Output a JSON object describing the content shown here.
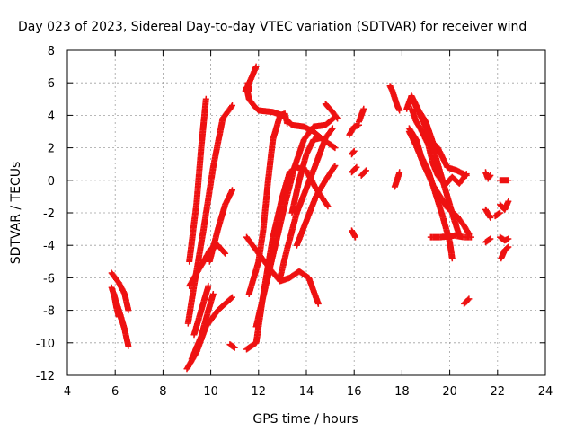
{
  "chart_data": {
    "type": "scatter",
    "title": "Day 023 of 2023, Sidereal Day-to-day VTEC variation (SDTVAR) for receiver wind",
    "xlabel": "GPS time / hours",
    "ylabel": "SDTVAR / TECUs",
    "xlim": [
      4,
      24
    ],
    "ylim": [
      -12,
      8
    ],
    "xticks": [
      4,
      6,
      8,
      10,
      12,
      14,
      16,
      18,
      20,
      22,
      24
    ],
    "yticks": [
      -12,
      -10,
      -8,
      -6,
      -4,
      -2,
      0,
      2,
      4,
      6,
      8
    ],
    "grid": true,
    "marker": "+",
    "color": "#ee1111",
    "tracks": [
      [
        [
          5.85,
          -5.7
        ],
        [
          6.15,
          -6.3
        ],
        [
          6.4,
          -7.0
        ],
        [
          6.55,
          -8.0
        ]
      ],
      [
        [
          5.85,
          -6.6
        ],
        [
          6.0,
          -7.3
        ],
        [
          6.2,
          -8.2
        ],
        [
          6.4,
          -9.2
        ],
        [
          6.55,
          -10.2
        ]
      ],
      [
        [
          5.95,
          -7.0
        ],
        [
          6.05,
          -7.8
        ],
        [
          6.15,
          -8.4
        ]
      ],
      [
        [
          9.1,
          -5.0
        ],
        [
          9.4,
          -1.5
        ],
        [
          9.6,
          2.0
        ],
        [
          9.8,
          5.0
        ]
      ],
      [
        [
          9.05,
          -8.8
        ],
        [
          9.3,
          -6.5
        ],
        [
          9.7,
          -3.0
        ],
        [
          10.1,
          0.8
        ],
        [
          10.5,
          3.8
        ],
        [
          10.9,
          4.6
        ]
      ],
      [
        [
          9.0,
          -11.6
        ],
        [
          9.4,
          -10.6
        ],
        [
          9.8,
          -9.0
        ],
        [
          10.3,
          -8.0
        ],
        [
          10.9,
          -7.2
        ]
      ],
      [
        [
          9.2,
          -11.0
        ],
        [
          9.6,
          -9.6
        ],
        [
          9.9,
          -8.0
        ],
        [
          10.1,
          -7.0
        ]
      ],
      [
        [
          9.1,
          -6.5
        ],
        [
          9.7,
          -5.0
        ],
        [
          10.0,
          -4.2
        ],
        [
          10.3,
          -4.0
        ],
        [
          10.6,
          -4.5
        ]
      ],
      [
        [
          9.3,
          -9.5
        ],
        [
          9.6,
          -8.0
        ],
        [
          9.9,
          -6.5
        ]
      ],
      [
        [
          9.95,
          -5.0
        ],
        [
          10.3,
          -3.0
        ],
        [
          10.6,
          -1.5
        ],
        [
          10.9,
          -0.6
        ]
      ],
      [
        [
          10.8,
          -10.1
        ],
        [
          11.0,
          -10.3
        ]
      ],
      [
        [
          11.5,
          5.7
        ],
        [
          11.6,
          5.0
        ],
        [
          11.8,
          4.6
        ],
        [
          12.0,
          4.3
        ],
        [
          12.6,
          4.2
        ],
        [
          13.0,
          4.0
        ],
        [
          13.4,
          3.4
        ],
        [
          13.9,
          3.3
        ],
        [
          14.3,
          3.0
        ],
        [
          14.7,
          2.5
        ],
        [
          15.2,
          2.0
        ]
      ],
      [
        [
          11.45,
          5.5
        ],
        [
          11.7,
          6.3
        ],
        [
          11.9,
          7.0
        ]
      ],
      [
        [
          11.55,
          6.0
        ],
        [
          11.6,
          5.5
        ]
      ],
      [
        [
          11.5,
          -10.4
        ],
        [
          11.9,
          -10.0
        ],
        [
          12.2,
          -7.0
        ],
        [
          12.6,
          -3.5
        ],
        [
          13.0,
          -1.0
        ],
        [
          13.3,
          0.5
        ],
        [
          13.6,
          0.8
        ],
        [
          14.0,
          0.6
        ],
        [
          14.4,
          -0.5
        ],
        [
          14.9,
          -1.6
        ]
      ],
      [
        [
          11.5,
          -3.5
        ],
        [
          12.0,
          -4.5
        ],
        [
          12.5,
          -5.5
        ],
        [
          12.9,
          -6.2
        ],
        [
          13.3,
          -6.0
        ],
        [
          13.7,
          -5.6
        ],
        [
          14.1,
          -6.0
        ],
        [
          14.5,
          -7.6
        ]
      ],
      [
        [
          11.6,
          -7.0
        ],
        [
          12.0,
          -5.0
        ],
        [
          12.2,
          -3.0
        ],
        [
          12.4,
          0.0
        ],
        [
          12.6,
          2.5
        ],
        [
          12.9,
          4.0
        ],
        [
          13.1,
          4.1
        ],
        [
          13.2,
          3.5
        ]
      ],
      [
        [
          11.9,
          -9.0
        ],
        [
          12.3,
          -6.5
        ],
        [
          12.7,
          -4.0
        ],
        [
          13.1,
          -1.5
        ],
        [
          13.5,
          0.8
        ],
        [
          13.9,
          2.5
        ],
        [
          14.3,
          3.3
        ],
        [
          14.8,
          3.4
        ],
        [
          15.2,
          3.9
        ]
      ],
      [
        [
          12.9,
          -6.0
        ],
        [
          13.2,
          -4.2
        ],
        [
          13.6,
          -2.0
        ],
        [
          14.0,
          -0.5
        ],
        [
          14.4,
          1.0
        ],
        [
          14.8,
          2.6
        ],
        [
          15.1,
          3.2
        ]
      ],
      [
        [
          13.4,
          -2.0
        ],
        [
          13.7,
          0.0
        ],
        [
          14.0,
          1.6
        ],
        [
          14.3,
          2.5
        ],
        [
          14.6,
          2.6
        ]
      ],
      [
        [
          13.6,
          -4.0
        ],
        [
          14.0,
          -2.5
        ],
        [
          14.4,
          -1.0
        ],
        [
          14.8,
          0.0
        ],
        [
          15.2,
          0.9
        ]
      ],
      [
        [
          14.8,
          4.7
        ],
        [
          15.1,
          4.2
        ],
        [
          15.3,
          3.8
        ]
      ],
      [
        [
          15.8,
          2.8
        ],
        [
          16.0,
          3.3
        ],
        [
          16.2,
          3.4
        ]
      ],
      [
        [
          16.2,
          3.6
        ],
        [
          16.4,
          4.4
        ]
      ],
      [
        [
          15.9,
          0.5
        ],
        [
          16.1,
          0.8
        ]
      ],
      [
        [
          15.9,
          1.6
        ],
        [
          16.0,
          1.8
        ]
      ],
      [
        [
          15.9,
          -3.1
        ],
        [
          16.05,
          -3.5
        ]
      ],
      [
        [
          16.3,
          0.3
        ],
        [
          16.5,
          0.6
        ]
      ],
      [
        [
          17.5,
          5.8
        ],
        [
          17.6,
          5.5
        ],
        [
          17.8,
          4.6
        ],
        [
          17.9,
          4.3
        ]
      ],
      [
        [
          17.7,
          -0.4
        ],
        [
          17.9,
          0.5
        ]
      ],
      [
        [
          18.2,
          4.4
        ],
        [
          18.4,
          5.2
        ],
        [
          18.7,
          4.3
        ],
        [
          19.0,
          3.6
        ],
        [
          19.3,
          2.3
        ],
        [
          19.5,
          2.0
        ],
        [
          19.9,
          0.8
        ],
        [
          20.3,
          0.6
        ],
        [
          20.7,
          0.3
        ]
      ],
      [
        [
          18.3,
          3.2
        ],
        [
          18.6,
          2.5
        ],
        [
          18.8,
          1.5
        ],
        [
          19.1,
          0.6
        ],
        [
          19.4,
          -0.8
        ],
        [
          19.7,
          -2.2
        ],
        [
          20.0,
          -3.8
        ],
        [
          20.1,
          -4.8
        ]
      ],
      [
        [
          18.4,
          4.4
        ],
        [
          18.6,
          3.6
        ],
        [
          18.8,
          3.1
        ],
        [
          19.1,
          2.2
        ],
        [
          19.3,
          1.0
        ],
        [
          19.5,
          0.3
        ],
        [
          19.8,
          -0.3
        ],
        [
          20.1,
          0.2
        ],
        [
          20.4,
          -0.2
        ],
        [
          20.7,
          0.4
        ]
      ],
      [
        [
          18.3,
          3.0
        ],
        [
          18.6,
          2.1
        ],
        [
          18.9,
          1.0
        ],
        [
          19.3,
          -0.3
        ],
        [
          19.6,
          -1.0
        ],
        [
          19.9,
          -1.7
        ],
        [
          20.3,
          -2.2
        ],
        [
          20.6,
          -2.8
        ],
        [
          20.8,
          -3.3
        ]
      ],
      [
        [
          18.5,
          4.8
        ],
        [
          18.9,
          3.6
        ],
        [
          19.2,
          2.5
        ],
        [
          19.5,
          1.0
        ],
        [
          19.8,
          -0.5
        ],
        [
          20.0,
          -1.5
        ],
        [
          20.2,
          -2.5
        ],
        [
          20.4,
          -3.4
        ]
      ],
      [
        [
          19.2,
          -3.5
        ],
        [
          19.6,
          -3.5
        ],
        [
          20.2,
          -3.4
        ],
        [
          20.6,
          -3.5
        ],
        [
          20.9,
          -3.5
        ]
      ],
      [
        [
          20.6,
          -7.6
        ],
        [
          20.8,
          -7.3
        ]
      ],
      [
        [
          21.5,
          0.5
        ],
        [
          21.6,
          0.1
        ],
        [
          21.7,
          0.3
        ]
      ],
      [
        [
          21.5,
          -1.8
        ],
        [
          21.7,
          -2.3
        ]
      ],
      [
        [
          21.5,
          -3.8
        ],
        [
          21.7,
          -3.6
        ]
      ],
      [
        [
          22.1,
          -1.5
        ],
        [
          22.3,
          -1.8
        ],
        [
          22.45,
          -1.3
        ]
      ],
      [
        [
          22.1,
          -3.5
        ],
        [
          22.3,
          -3.7
        ],
        [
          22.45,
          -3.6
        ]
      ],
      [
        [
          22.15,
          -4.8
        ],
        [
          22.3,
          -4.3
        ],
        [
          22.45,
          -4.1
        ]
      ],
      [
        [
          22.1,
          0.0
        ],
        [
          22.3,
          0.0
        ],
        [
          22.45,
          0.0
        ]
      ],
      [
        [
          21.9,
          -2.2
        ],
        [
          22.1,
          -2.0
        ]
      ]
    ]
  }
}
